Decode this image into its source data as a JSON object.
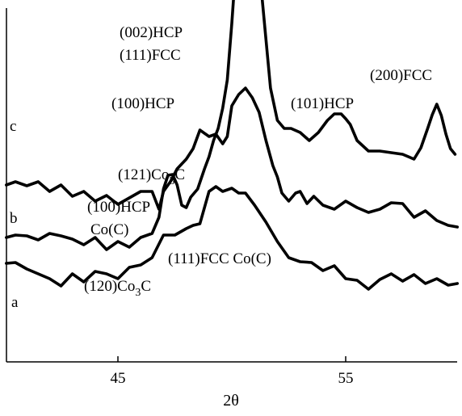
{
  "chart_data": {
    "type": "line",
    "title": "",
    "xlabel": "2θ",
    "ylabel": "",
    "xlim": [
      40,
      60
    ],
    "grid": false,
    "ticks": [
      {
        "value": 45,
        "label": "45"
      },
      {
        "value": 55,
        "label": "55"
      }
    ],
    "series": [
      {
        "name": "c",
        "x": [
          40.1,
          40.5,
          41.0,
          41.5,
          42.0,
          42.5,
          43.0,
          43.5,
          44.0,
          44.5,
          45.0,
          45.5,
          46.0,
          46.5,
          46.8,
          47.0,
          47.2,
          47.4,
          47.6,
          47.8,
          48.0,
          48.2,
          48.5,
          48.8,
          49.0,
          49.2,
          49.4,
          49.6,
          49.8,
          50.0,
          50.1,
          50.2,
          50.3,
          51.1,
          51.2,
          51.3,
          51.5,
          51.7,
          52.0,
          52.3,
          52.6,
          53.0,
          53.4,
          53.8,
          54.2,
          54.5,
          54.8,
          55.0,
          55.2,
          55.5,
          56.0,
          56.5,
          57.0,
          57.5,
          58.0,
          58.3,
          58.6,
          58.8,
          59.0,
          59.2,
          59.4,
          59.6,
          59.8
        ],
        "y": [
          155,
          158,
          157,
          152,
          160,
          157,
          153,
          146,
          155,
          140,
          150,
          143,
          155,
          160,
          180,
          215,
          232,
          233,
          220,
          195,
          192,
          205,
          215,
          240,
          255,
          275,
          290,
          315,
          350,
          420,
          460,
          498,
          500,
          500,
          498,
          460,
          400,
          340,
          300,
          290,
          290,
          285,
          275,
          285,
          300,
          308,
          308,
          302,
          295,
          275,
          262,
          262,
          260,
          258,
          252,
          266,
          290,
          307,
          320,
          306,
          283,
          265,
          258
        ]
      },
      {
        "name": "b",
        "x": [
          40.1,
          40.5,
          41.0,
          41.5,
          42.0,
          42.5,
          43.0,
          43.5,
          44.0,
          44.5,
          45.0,
          45.5,
          46.0,
          46.5,
          46.8,
          47.0,
          47.3,
          47.6,
          48.0,
          48.3,
          48.6,
          49.0,
          49.3,
          49.6,
          49.8,
          50.0,
          50.3,
          50.6,
          50.9,
          51.2,
          51.5,
          51.8,
          52.0,
          52.2,
          52.5,
          52.8,
          53.0,
          53.3,
          53.6,
          54.0,
          54.5,
          55.0,
          55.5,
          56.0,
          56.5,
          57.0,
          57.5,
          58.0,
          58.5,
          59.0,
          59.5,
          59.9
        ],
        "y": [
          220,
          224,
          219,
          224,
          212,
          220,
          206,
          212,
          200,
          207,
          196,
          204,
          212,
          212,
          190,
          212,
          224,
          240,
          252,
          265,
          288,
          280,
          283,
          271,
          280,
          318,
          332,
          340,
          328,
          310,
          275,
          244,
          230,
          210,
          200,
          210,
          212,
          197,
          206,
          195,
          190,
          200,
          192,
          186,
          190,
          198,
          197,
          180,
          188,
          176,
          170,
          168
        ]
      },
      {
        "name": "a",
        "x": [
          40.1,
          40.5,
          41.0,
          41.5,
          42.0,
          42.5,
          43.0,
          43.5,
          44.0,
          44.5,
          45.0,
          45.5,
          46.0,
          46.5,
          47.0,
          47.5,
          48.0,
          48.3,
          48.6,
          49.0,
          49.3,
          49.6,
          50.0,
          50.3,
          50.6,
          51.0,
          51.5,
          52.0,
          52.5,
          53.0,
          53.5,
          54.0,
          54.5,
          55.0,
          55.5,
          56.0,
          56.5,
          57.0,
          57.5,
          58.0,
          58.5,
          59.0,
          59.5,
          59.9
        ],
        "y": [
          123,
          124,
          116,
          110,
          104,
          95,
          110,
          100,
          113,
          110,
          104,
          118,
          121,
          130,
          158,
          158,
          166,
          170,
          172,
          212,
          218,
          212,
          216,
          210,
          210,
          195,
          174,
          150,
          130,
          125,
          124,
          114,
          120,
          104,
          102,
          91,
          103,
          110,
          101,
          109,
          98,
          104,
          96,
          98
        ]
      }
    ],
    "annotations": [
      {
        "id": "c",
        "text": "c"
      },
      {
        "id": "b",
        "text": "b"
      },
      {
        "id": "a",
        "text": "a"
      },
      {
        "id": "hcp002",
        "text": "(002)HCP"
      },
      {
        "id": "fcc111_c",
        "text": "(111)FCC"
      },
      {
        "id": "hcp100_c",
        "text": "(100)HCP"
      },
      {
        "id": "hcp101",
        "text": "(101)HCP"
      },
      {
        "id": "fcc200",
        "text": "(200)FCC"
      },
      {
        "id": "co3c121",
        "text": "(121)Co",
        "sub": "3",
        "after": "C"
      },
      {
        "id": "hcp100_b",
        "text": "(100)HCP"
      },
      {
        "id": "coc_b",
        "text": "Co(C)"
      },
      {
        "id": "fcc111_b",
        "text": "(111)FCC Co(C)"
      },
      {
        "id": "co3c120",
        "text": "(120)Co",
        "sub": "3",
        "after": "C"
      }
    ]
  }
}
